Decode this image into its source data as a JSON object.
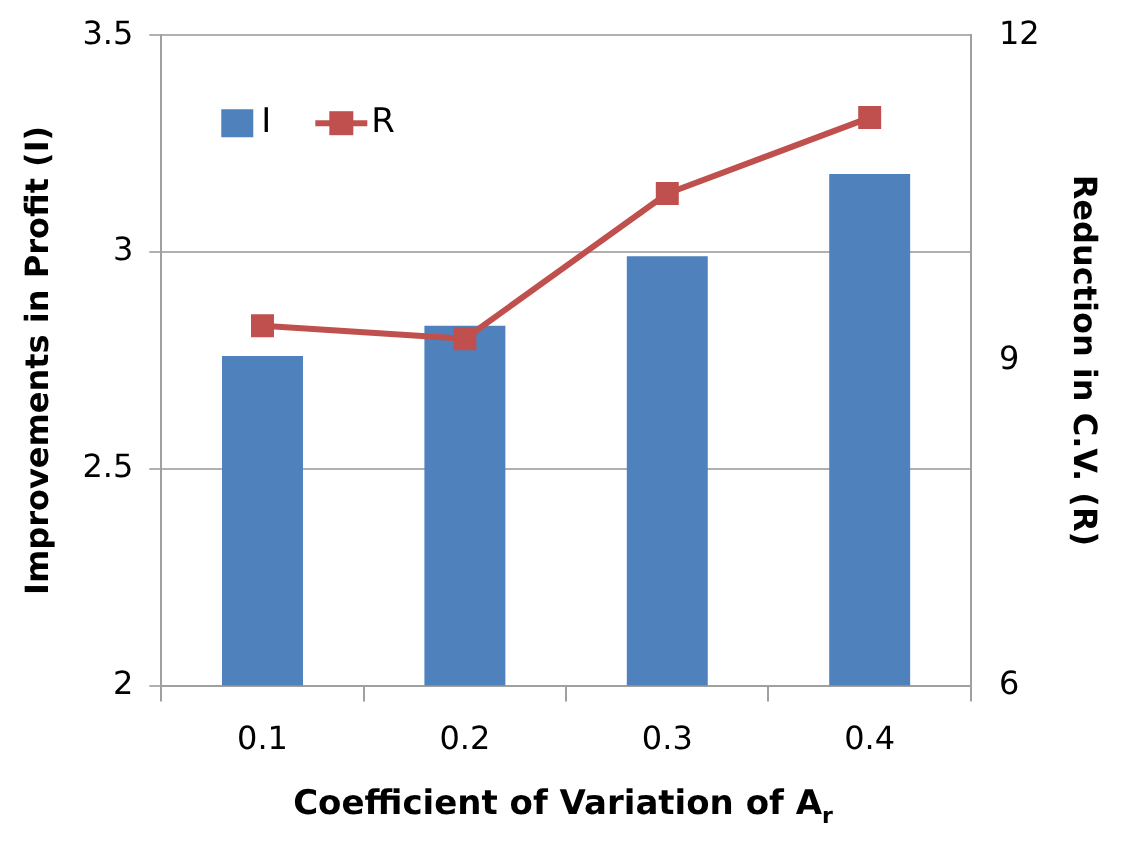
{
  "chart_data": {
    "type": "bar",
    "xlabel": "Coefficient of Variation of A$_{r}$",
    "ylabel": "Improvements in Profit (I)",
    "y2label": "Reduction in C.V. (R)",
    "categories": [
      "0.1",
      "0.2",
      "0.3",
      "0.4"
    ],
    "series": [
      {
        "name": "I",
        "color": "#4f81bd",
        "values": [
          2.76,
          2.83,
          2.99,
          3.18
        ]
      },
      {
        "name": "R",
        "type": "line",
        "axis": "y2",
        "color": "#c0504d",
        "values": [
          9.32,
          9.2,
          10.54,
          11.24
        ]
      }
    ],
    "ylim": [
      2,
      3.5
    ],
    "yticks": [
      2,
      2.5,
      3,
      3.5
    ],
    "y2lim": [
      6,
      12
    ],
    "y2ticks": [
      6,
      9,
      12
    ],
    "grid": "y",
    "legend": "top left",
    "marker": "square"
  }
}
